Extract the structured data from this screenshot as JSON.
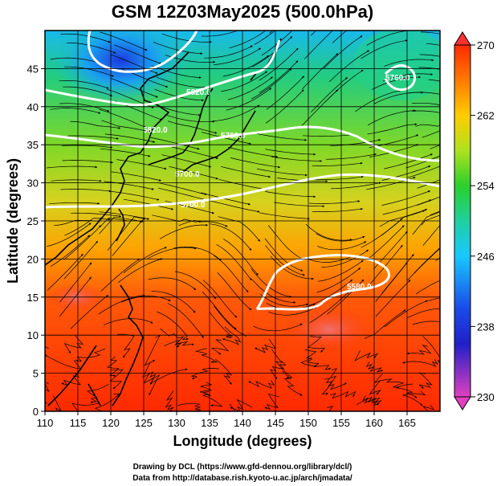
{
  "title": "GSM 12Z03May2025 (500.0hPa)",
  "axes": {
    "xlabel": "Longitude (degrees)",
    "ylabel": "Latitude  (degrees)",
    "xlim": [
      110,
      170
    ],
    "ylim": [
      0,
      50
    ],
    "xticks": [
      "110",
      "115",
      "120",
      "125",
      "130",
      "135",
      "140",
      "145",
      "150",
      "155",
      "160",
      "165"
    ],
    "yticks": [
      "0",
      "5",
      "10",
      "15",
      "20",
      "25",
      "30",
      "35",
      "40",
      "45"
    ]
  },
  "colorbar": {
    "ticks": [
      "270",
      "262",
      "254",
      "246",
      "238",
      "230"
    ],
    "range": [
      230,
      270
    ],
    "colors": {
      "low": "#e040c0",
      "c238": "#1a1adc",
      "c246": "#18c8ff",
      "c254": "#2ad02a",
      "c258": "#b4e61e",
      "c262": "#ffa000",
      "high": "#ff2a00"
    }
  },
  "contours": {
    "labels": [
      "5580.0",
      "5700.0",
      "5760.0",
      "5820.0"
    ],
    "color": "#ffffff"
  },
  "credits": {
    "line1": "Drawing by DCL (https://www.gfd-dennou.org/library/dcl/)",
    "line2": "Data from http://database.rish.kyoto-u.ac.jp/arch/jmadata/"
  }
}
